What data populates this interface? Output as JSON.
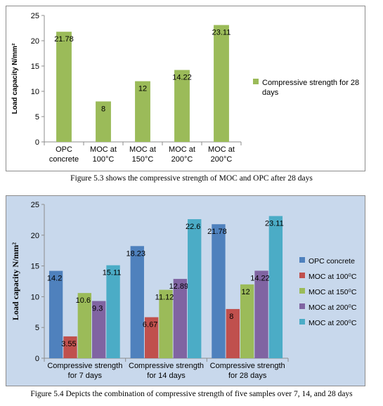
{
  "colors": {
    "frame1_bg": "#ffffff",
    "frame2_bg": "#c8d8ec",
    "green": "#9bbb59",
    "blue": "#4f81bd",
    "red": "#c0504d",
    "purple": "#8064a2",
    "teal": "#4bacc6",
    "axis": "#8c8c8c"
  },
  "figures": [
    {
      "caption": "Figure 5.3 shows the compressive strength of MOC and OPC after 28 days",
      "chart_data": {
        "type": "bar",
        "title": "",
        "xlabel": "",
        "ylabel": "Load capacity N/mm²",
        "ylim": [
          0,
          25
        ],
        "yticks": [
          "0",
          "5",
          "10",
          "15",
          "20",
          "25"
        ],
        "categories": [
          [
            "OPC",
            "concrete"
          ],
          [
            "MOC at",
            "100°C"
          ],
          [
            "MOC at",
            "150°C"
          ],
          [
            "MOC at",
            "200°C"
          ],
          [
            "MOC at",
            "200°C"
          ]
        ],
        "series": [
          {
            "name": "Compressive strength  for 28 days",
            "legend_lines": [
              "Compressive strength  for 28",
              "days"
            ],
            "color": "#9bbb59",
            "values": [
              21.78,
              8,
              12,
              14.22,
              23.11
            ],
            "labels": [
              "21.78",
              "8",
              "12",
              "14.22",
              "23.11"
            ]
          }
        ],
        "grid": false,
        "legend_position": "right"
      }
    },
    {
      "caption": "Figure 5.4 Depicts the combination of compressive strength of five samples over 7, 14, and 28 days",
      "chart_data": {
        "type": "bar",
        "title": "",
        "xlabel": "",
        "ylabel": "Load capacity N/mm²",
        "ylim": [
          0,
          25
        ],
        "yticks": [
          "0",
          "5",
          "10",
          "15",
          "20",
          "25"
        ],
        "categories": [
          [
            "Compressive strength",
            "for 7 days"
          ],
          [
            "Compressive strength",
            "for 14 days"
          ],
          [
            "Compressive strength",
            "for 28 days"
          ]
        ],
        "series": [
          {
            "name": "OPC concrete",
            "legend_lines": [
              "OPC concrete"
            ],
            "color": "#4f81bd",
            "values": [
              14.2,
              18.23,
              21.78
            ],
            "labels": [
              "14.2",
              "18.23",
              "21.78"
            ]
          },
          {
            "name": "MOC at 100⁰C",
            "legend_lines": [
              "MOC at 100⁰C"
            ],
            "color": "#c0504d",
            "values": [
              3.55,
              6.67,
              8
            ],
            "labels": [
              "3.55",
              "6.67",
              "8"
            ]
          },
          {
            "name": "MOC at 150⁰C",
            "legend_lines": [
              "MOC at 150⁰C"
            ],
            "color": "#9bbb59",
            "values": [
              10.6,
              11.12,
              12
            ],
            "labels": [
              "10.6",
              "11.12",
              "12"
            ]
          },
          {
            "name": "MOC at 200⁰C",
            "legend_lines": [
              "MOC at 200⁰C"
            ],
            "color": "#8064a2",
            "values": [
              9.3,
              12.89,
              14.22
            ],
            "labels": [
              "9.3",
              "12.89",
              "14.22"
            ]
          },
          {
            "name": "MOC at 200⁰C",
            "legend_lines": [
              "MOC at 200⁰C"
            ],
            "color": "#4bacc6",
            "values": [
              15.11,
              22.6,
              23.11
            ],
            "labels": [
              "15.11",
              "22.6",
              "23.11"
            ]
          }
        ],
        "grid": false,
        "legend_position": "right"
      }
    }
  ]
}
